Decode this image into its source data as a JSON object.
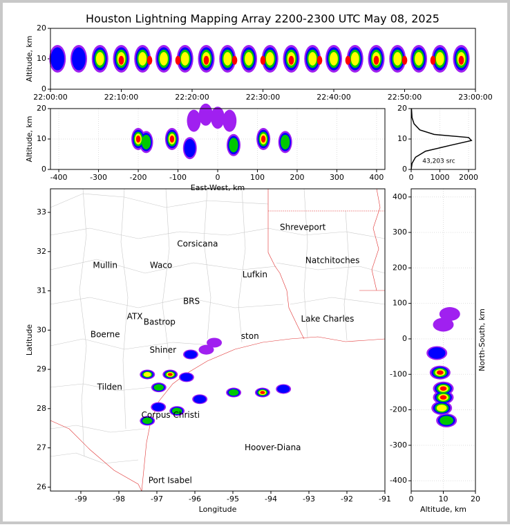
{
  "chart_data": [
    {
      "type": "scatter",
      "title": "Houston Lightning Mapping Array 2200-2300 UTC May 08, 2025",
      "ylabel": "Altitude, km",
      "xlim": [
        0,
        60
      ],
      "xticks": [
        {
          "value": 0,
          "label": "22:00:00"
        },
        {
          "value": 10,
          "label": "22:10:00"
        },
        {
          "value": 20,
          "label": "22:20:00"
        },
        {
          "value": 30,
          "label": "22:30:00"
        },
        {
          "value": 40,
          "label": "22:40:00"
        },
        {
          "value": 50,
          "label": "22:50:00"
        },
        {
          "value": 60,
          "label": "23:00:00"
        }
      ],
      "ylim": [
        0,
        20
      ],
      "yticks": [
        0,
        10,
        20
      ],
      "grid": false,
      "series": [
        {
          "color": "#a020f0",
          "x": [
            1,
            4,
            7,
            10,
            13,
            16,
            19,
            22,
            25,
            28,
            31,
            34,
            37,
            40,
            43,
            46,
            49,
            52,
            55,
            58
          ],
          "values": [
            10,
            10,
            10,
            10,
            10,
            10,
            10,
            10,
            10,
            10,
            10,
            10,
            10,
            10,
            10,
            10,
            10,
            10,
            10,
            10
          ]
        },
        {
          "color": "#0000ff",
          "x": [
            1,
            4,
            7,
            10,
            13,
            16,
            19,
            22,
            25,
            28,
            31,
            34,
            37,
            40,
            43,
            46,
            49,
            52,
            55,
            58
          ],
          "values": [
            10,
            10,
            10,
            10,
            10,
            10,
            10,
            10,
            10,
            10,
            10,
            10,
            10,
            10,
            10,
            10,
            10,
            10,
            10,
            10
          ]
        },
        {
          "color": "#00c800",
          "x": [
            7,
            10,
            13,
            16,
            19,
            22,
            25,
            28,
            31,
            34,
            37,
            40,
            43,
            46,
            49,
            52,
            55,
            58
          ],
          "values": [
            10,
            10,
            10,
            10,
            10,
            10,
            10,
            10,
            10,
            10,
            10,
            10,
            10,
            10,
            10,
            10,
            10,
            10
          ]
        },
        {
          "color": "#ffff00",
          "x": [
            7,
            10,
            13,
            16,
            19,
            22,
            25,
            28,
            31,
            34,
            37,
            40,
            43,
            46,
            49,
            52,
            55,
            58
          ],
          "values": [
            10,
            10,
            10,
            10,
            10,
            10,
            10,
            10,
            10,
            10,
            10,
            10,
            10,
            10,
            10,
            10,
            10,
            10
          ]
        },
        {
          "color": "#ff0000",
          "x": [
            10,
            14,
            18,
            22,
            26,
            30,
            34,
            38,
            42,
            46,
            50,
            54,
            58
          ],
          "values": [
            9.5,
            9.5,
            9.5,
            9.5,
            9.5,
            9.5,
            9.5,
            9.5,
            9.5,
            9.5,
            9.5,
            9.5,
            9.5
          ]
        }
      ]
    },
    {
      "type": "scatter",
      "xlabel": "East-West, km",
      "ylabel": "Altitude, km",
      "xlim": [
        -421,
        421
      ],
      "xticks": [
        -400,
        -300,
        -200,
        -100,
        0,
        100,
        200,
        300,
        400
      ],
      "ylim": [
        0,
        20
      ],
      "yticks": [
        0,
        10,
        20
      ],
      "grid": true,
      "series": [
        {
          "color": "#a020f0",
          "x": [
            -200,
            -180,
            -115,
            -70,
            40,
            115,
            170,
            -60,
            -30,
            0,
            30
          ],
          "values": [
            10,
            9,
            10,
            7,
            8,
            10,
            9,
            16,
            18,
            17,
            16
          ]
        },
        {
          "color": "#0000ff",
          "x": [
            -200,
            -180,
            -115,
            -70,
            40,
            115,
            170
          ],
          "values": [
            10,
            9,
            10,
            7,
            8,
            10,
            9
          ]
        },
        {
          "color": "#00c800",
          "x": [
            -200,
            -180,
            -115,
            40,
            115,
            170
          ],
          "values": [
            10,
            9,
            10,
            8,
            10,
            9
          ]
        },
        {
          "color": "#ffff00",
          "x": [
            -200,
            -115,
            115
          ],
          "values": [
            10,
            10,
            10
          ]
        },
        {
          "color": "#ff0000",
          "x": [
            -200,
            -115,
            115
          ],
          "values": [
            10,
            10,
            10
          ]
        }
      ]
    },
    {
      "type": "line",
      "annotation": "43,203 src",
      "xlim": [
        0,
        2240
      ],
      "xticks": [
        0,
        1000,
        2000
      ],
      "ylim": [
        0,
        20
      ],
      "yticks": [
        0,
        10,
        20
      ],
      "grid": true,
      "color": "#000000",
      "x": [
        0,
        30,
        150,
        500,
        1400,
        2100,
        2000,
        800,
        300,
        100,
        30,
        10
      ],
      "values": [
        0,
        2,
        4,
        6,
        8,
        9.5,
        10.5,
        11.5,
        13,
        15,
        17,
        20
      ]
    },
    {
      "type": "scatter",
      "xlabel": "Longitude",
      "ylabel": "Latitude",
      "xlim": [
        -99.8,
        -91
      ],
      "xticks": [
        -99,
        -98,
        -97,
        -96,
        -95,
        -94,
        -93,
        -92,
        -91
      ],
      "ylim": [
        25.9,
        33.6
      ],
      "yticks": [
        26,
        27,
        28,
        29,
        30,
        31,
        32,
        33
      ],
      "grid": false,
      "annotations": [
        {
          "text": "Shreveport",
          "lon": -93.16,
          "lat": 32.61,
          "color": "#000000"
        },
        {
          "text": "Corsicana",
          "lon": -95.93,
          "lat": 32.19,
          "color": "#000000"
        },
        {
          "text": "Mullin",
          "lon": -98.36,
          "lat": 31.64,
          "color": "#ff8c40"
        },
        {
          "text": "Waco",
          "lon": -96.89,
          "lat": 31.64,
          "color": "#000000"
        },
        {
          "text": "Lufkin",
          "lon": -94.42,
          "lat": 31.41,
          "color": "#000000"
        },
        {
          "text": "Natchitoches",
          "lon": -92.38,
          "lat": 31.77,
          "color": "#000000"
        },
        {
          "text": "BRS",
          "lon": -96.09,
          "lat": 30.73,
          "color": "#6b0000"
        },
        {
          "text": "ATX",
          "lon": -97.58,
          "lat": 30.34,
          "color": "#ff8c40"
        },
        {
          "text": "Bastrop",
          "lon": -96.93,
          "lat": 30.2,
          "color": "#000000"
        },
        {
          "text": "Lake Charles",
          "lon": -92.51,
          "lat": 30.28,
          "color": "#000000"
        },
        {
          "text": "Boerne",
          "lon": -98.36,
          "lat": 29.88,
          "color": "#000000"
        },
        {
          "text": "ston",
          "lon": -94.55,
          "lat": 29.84,
          "color": "#ffa500"
        },
        {
          "text": "Shiner",
          "lon": -96.84,
          "lat": 29.49,
          "color": "#000000"
        },
        {
          "text": "Tilden",
          "lon": -98.24,
          "lat": 28.54,
          "color": "#000000"
        },
        {
          "text": "Corpus Christi",
          "lon": -96.64,
          "lat": 27.83,
          "color": "#000000"
        },
        {
          "text": "Hoover-Diana",
          "lon": -93.95,
          "lat": 27.0,
          "color": "#0000ff"
        },
        {
          "text": "Port Isabel",
          "lon": -96.65,
          "lat": 26.16,
          "color": "#000000"
        }
      ],
      "series": [
        {
          "color": "#a020f0",
          "x": [
            -97.25,
            -96.65,
            -96.95,
            -96.22,
            -96.96,
            -96.47,
            -97.25,
            -96.11,
            -94.22,
            -94.98,
            -95.87,
            -93.67,
            -95.49,
            -95.7
          ],
          "values": [
            28.87,
            28.87,
            28.54,
            28.8,
            28.04,
            27.94,
            27.69,
            29.38,
            28.41,
            28.41,
            28.24,
            28.5,
            29.68,
            29.5
          ]
        },
        {
          "color": "#0000ff",
          "x": [
            -97.25,
            -96.65,
            -96.95,
            -96.22,
            -96.96,
            -96.47,
            -97.25,
            -96.11,
            -94.22,
            -94.98,
            -95.87,
            -93.67
          ],
          "values": [
            28.87,
            28.87,
            28.54,
            28.8,
            28.04,
            27.94,
            27.69,
            29.38,
            28.41,
            28.41,
            28.24,
            28.5
          ]
        },
        {
          "color": "#00c800",
          "x": [
            -97.25,
            -96.65,
            -96.95,
            -96.47,
            -97.25,
            -94.22,
            -94.98
          ],
          "values": [
            28.87,
            28.87,
            28.54,
            27.94,
            27.69,
            28.41,
            28.41
          ]
        },
        {
          "color": "#ffff00",
          "x": [
            -97.25,
            -96.65,
            -94.22
          ],
          "values": [
            28.87,
            28.87,
            28.41
          ]
        },
        {
          "color": "#ff0000",
          "x": [
            -96.65,
            -94.22
          ],
          "values": [
            28.87,
            28.41
          ]
        }
      ]
    },
    {
      "type": "scatter",
      "xlabel": "Altitude, km",
      "ylabel": "North-South, km",
      "xlim": [
        0,
        20
      ],
      "xticks": [
        0,
        10,
        20
      ],
      "ylim": [
        -429,
        423
      ],
      "yticks": [
        -400,
        -300,
        -200,
        -100,
        0,
        100,
        200,
        300,
        400
      ],
      "grid": true,
      "series": [
        {
          "color": "#a020f0",
          "x": [
            9,
            10,
            10,
            9.5,
            11,
            8,
            10,
            12
          ],
          "values": [
            -95,
            -140,
            -165,
            -195,
            -230,
            -40,
            40,
            70
          ]
        },
        {
          "color": "#0000ff",
          "x": [
            9,
            10,
            10,
            9.5,
            11,
            8
          ],
          "values": [
            -95,
            -140,
            -165,
            -195,
            -230,
            -40
          ]
        },
        {
          "color": "#00c800",
          "x": [
            9,
            10,
            10,
            9.5,
            11
          ],
          "values": [
            -95,
            -140,
            -165,
            -195,
            -230
          ]
        },
        {
          "color": "#ffff00",
          "x": [
            9,
            10,
            10,
            9.5
          ],
          "values": [
            -95,
            -140,
            -165,
            -195
          ]
        },
        {
          "color": "#ff0000",
          "x": [
            9,
            10,
            10
          ],
          "values": [
            -95,
            -140,
            -165
          ]
        }
      ]
    }
  ]
}
